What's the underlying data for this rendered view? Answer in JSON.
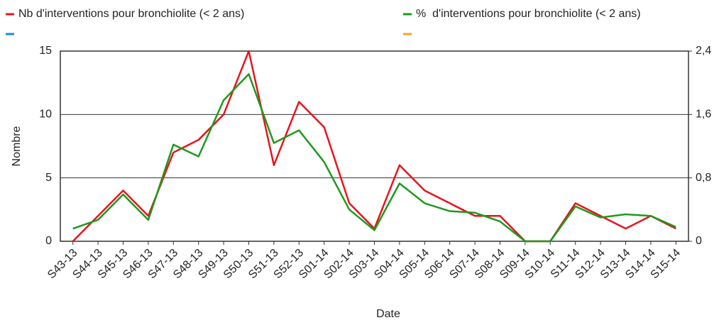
{
  "chart_data": {
    "type": "line",
    "x_label": "Date",
    "y_label": "Nombre",
    "categories": [
      "S43-13",
      "S44-13",
      "S45-13",
      "S46-13",
      "S47-13",
      "S48-13",
      "S49-13",
      "S50-13",
      "S51-13",
      "S52-13",
      "S01-14",
      "S02-14",
      "S03-14",
      "S04-14",
      "S05-14",
      "S06-14",
      "S07-14",
      "S08-14",
      "S09-14",
      "S10-14",
      "S11-14",
      "S12-14",
      "S13-14",
      "S14-14",
      "S15-14"
    ],
    "series": [
      {
        "name": "Nb d'interventions pour bronchiolite (< 2 ans)",
        "color": "#e8141c",
        "values": [
          0,
          2,
          4,
          2,
          7,
          8,
          10,
          15,
          6,
          11,
          9,
          3,
          1,
          6,
          4,
          3,
          2,
          2,
          0,
          0,
          3,
          2,
          1,
          2,
          1
        ]
      },
      {
        "name": "%  d'interventions pour bronchiolite (< 2 ans)",
        "color": "#1e9a1e",
        "axis": "y2",
        "values": [
          0.16,
          0.27,
          0.59,
          0.27,
          1.22,
          1.07,
          1.78,
          2.11,
          1.24,
          1.4,
          1.0,
          0.4,
          0.14,
          0.73,
          0.48,
          0.38,
          0.36,
          0.25,
          0,
          0,
          0.44,
          0.3,
          0.34,
          0.32,
          0.18
        ]
      }
    ],
    "ylim": [
      0,
      15
    ],
    "yticks": [
      0,
      5,
      10,
      15
    ],
    "y2lim": [
      0,
      2.4
    ],
    "y2ticks": [
      0,
      {
        "value": 0.8,
        "label": "0,8"
      },
      {
        "value": 1.6,
        "label": "1,6"
      },
      {
        "value": 2.4,
        "label": "2,4"
      }
    ],
    "grid": true
  }
}
